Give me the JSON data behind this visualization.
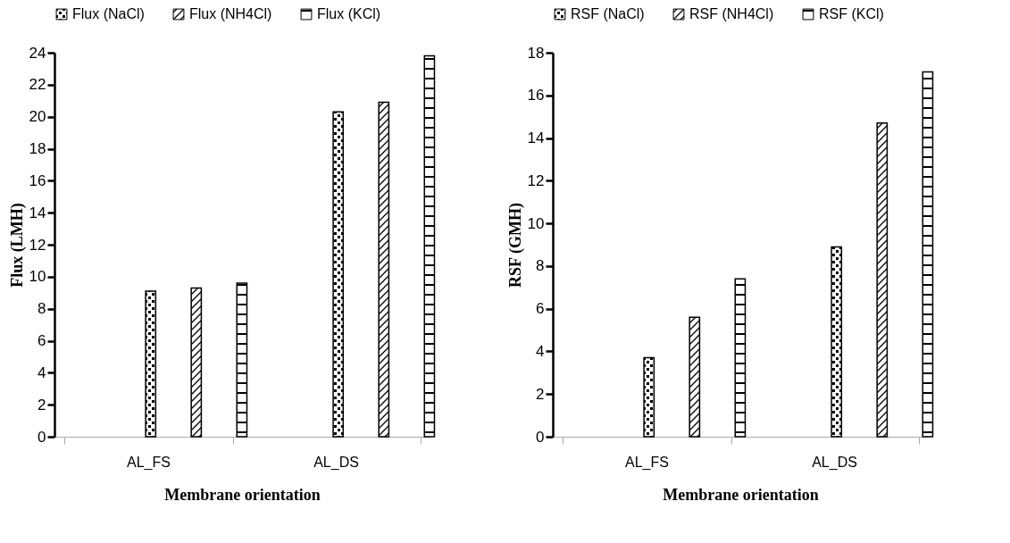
{
  "chart_data": [
    {
      "type": "bar",
      "xlabel": "Membrane orientation",
      "ylabel": "Flux (LMH)",
      "categories": [
        "AL_FS",
        "AL_DS"
      ],
      "ylim": [
        0,
        24
      ],
      "yticks": [
        0,
        2,
        4,
        6,
        8,
        10,
        12,
        14,
        16,
        18,
        20,
        22,
        24
      ],
      "grid": false,
      "legend": "top",
      "series": [
        {
          "name": "Flux (NaCl)",
          "color": "#000000",
          "values": [
            9.1,
            20.3
          ]
        },
        {
          "name": "Flux (NH4Cl)",
          "color": "#000000",
          "values": [
            9.3,
            20.9
          ]
        },
        {
          "name": "Flux (KCl)",
          "color": "#000000",
          "values": [
            9.6,
            23.8
          ]
        }
      ]
    },
    {
      "type": "bar",
      "xlabel": "Membrane orientation",
      "ylabel": "RSF (GMH)",
      "categories": [
        "AL_FS",
        "AL_DS"
      ],
      "ylim": [
        0,
        18
      ],
      "yticks": [
        0,
        2,
        4,
        6,
        8,
        10,
        12,
        14,
        16,
        18
      ],
      "grid": false,
      "legend": "top",
      "series": [
        {
          "name": "RSF (NaCl)",
          "color": "#000000",
          "values": [
            3.7,
            8.9
          ]
        },
        {
          "name": "RSF (NH4Cl)",
          "color": "#000000",
          "values": [
            5.6,
            14.7
          ]
        },
        {
          "name": "RSF (KCl)",
          "color": "#000000",
          "values": [
            7.4,
            17.1
          ]
        }
      ]
    }
  ]
}
